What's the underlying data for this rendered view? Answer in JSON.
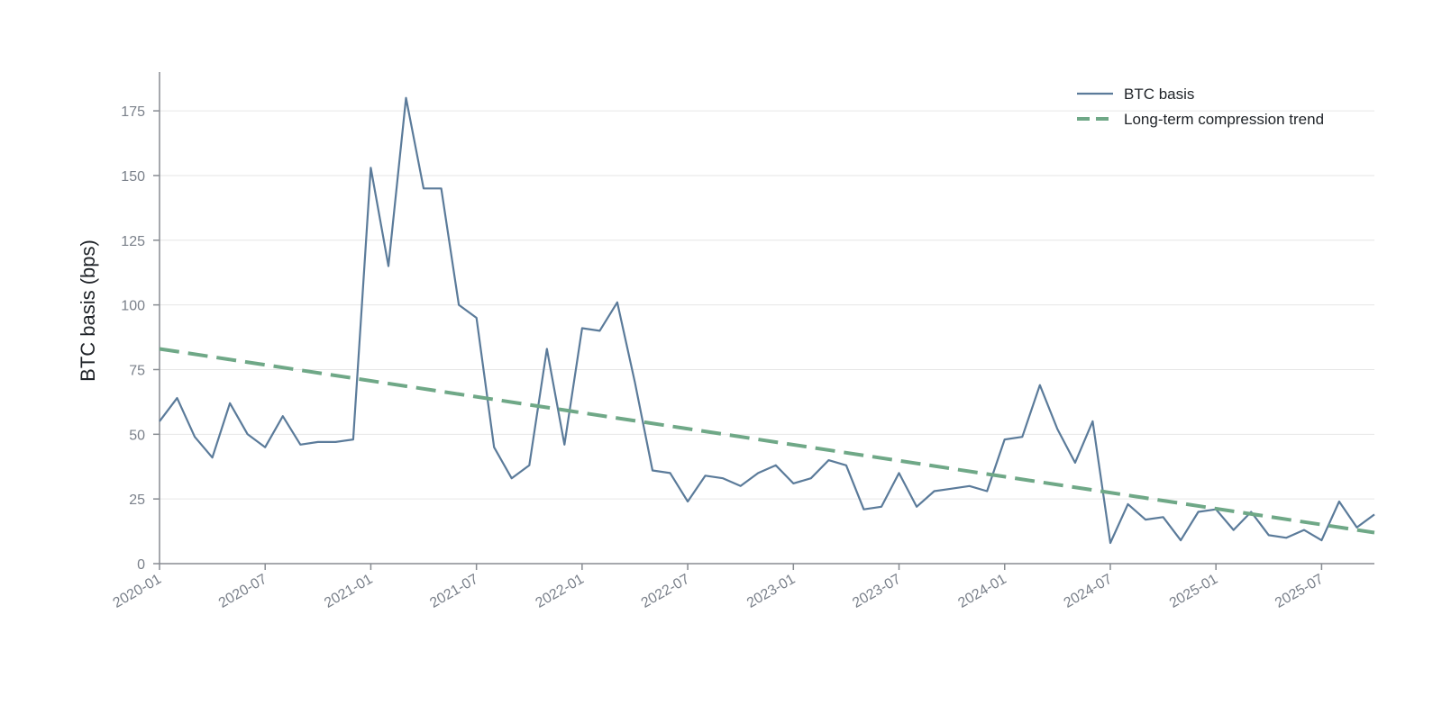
{
  "chart_data": {
    "type": "line",
    "title": "",
    "xlabel": "",
    "ylabel": "BTC basis (bps)",
    "ylim": [
      0,
      190
    ],
    "yticks": [
      0,
      25,
      50,
      75,
      100,
      125,
      150,
      175
    ],
    "xlim": [
      "2020-01",
      "2025-10"
    ],
    "xticks": [
      "2020-01",
      "2020-07",
      "2021-01",
      "2021-07",
      "2022-01",
      "2022-07",
      "2023-01",
      "2023-07",
      "2024-01",
      "2024-07",
      "2025-01",
      "2025-07"
    ],
    "grid": "horizontal",
    "legend_position": "top-right",
    "x": [
      "2020-01",
      "2020-02",
      "2020-03",
      "2020-04",
      "2020-05",
      "2020-06",
      "2020-07",
      "2020-08",
      "2020-09",
      "2020-10",
      "2020-11",
      "2020-12",
      "2021-01",
      "2021-02",
      "2021-03",
      "2021-04",
      "2021-05",
      "2021-06",
      "2021-07",
      "2021-08",
      "2021-09",
      "2021-10",
      "2021-11",
      "2021-12",
      "2022-01",
      "2022-02",
      "2022-03",
      "2022-04",
      "2022-05",
      "2022-06",
      "2022-07",
      "2022-08",
      "2022-09",
      "2022-10",
      "2022-11",
      "2022-12",
      "2023-01",
      "2023-02",
      "2023-03",
      "2023-04",
      "2023-05",
      "2023-06",
      "2023-07",
      "2023-08",
      "2023-09",
      "2023-10",
      "2023-11",
      "2023-12",
      "2024-01",
      "2024-02",
      "2024-03",
      "2024-04",
      "2024-05",
      "2024-06",
      "2024-07",
      "2024-08",
      "2024-09",
      "2024-10",
      "2024-11",
      "2024-12",
      "2025-01",
      "2025-02",
      "2025-03",
      "2025-04",
      "2025-05",
      "2025-06",
      "2025-07",
      "2025-08",
      "2025-09",
      "2025-10"
    ],
    "series": [
      {
        "name": "BTC basis",
        "style": "solid",
        "color": "#5b7b9a",
        "values": [
          55,
          64,
          49,
          41,
          62,
          50,
          45,
          57,
          46,
          47,
          47,
          48,
          153,
          115,
          180,
          145,
          145,
          100,
          95,
          45,
          33,
          38,
          83,
          46,
          91,
          90,
          101,
          70,
          36,
          35,
          24,
          34,
          33,
          30,
          35,
          38,
          31,
          33,
          40,
          38,
          21,
          22,
          35,
          22,
          28,
          29,
          30,
          28,
          48,
          49,
          69,
          52,
          39,
          55,
          8,
          23,
          17,
          18,
          9,
          20,
          21,
          13,
          20,
          11,
          10,
          13,
          9,
          24,
          14,
          19
        ]
      },
      {
        "name": "Long-term compression trend",
        "style": "dashed",
        "color": "#6fa887",
        "start": {
          "x": "2020-01",
          "y": 83
        },
        "end": {
          "x": "2025-10",
          "y": 12
        }
      }
    ]
  }
}
